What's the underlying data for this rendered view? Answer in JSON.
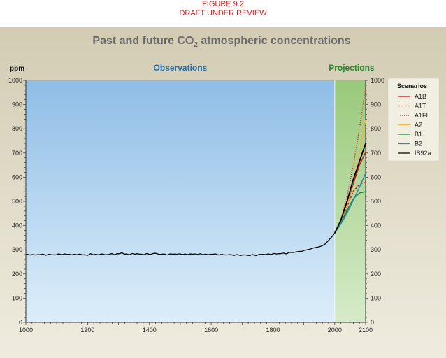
{
  "header": {
    "figure": "FIGURE 9.2",
    "status": "DRAFT UNDER REVIEW"
  },
  "chart_data": {
    "type": "line",
    "title_main": "Past and future CO",
    "title_sub": "2",
    "title_rest": " atmospheric concentrations",
    "ylabel": "ppm",
    "xlim": [
      1000,
      2100
    ],
    "ylim": [
      0,
      1000
    ],
    "x_ticks": [
      1000,
      1200,
      1400,
      1600,
      1800,
      2000,
      2100
    ],
    "y_ticks": [
      0,
      100,
      200,
      300,
      400,
      500,
      600,
      700,
      800,
      900,
      1000
    ],
    "regions": [
      {
        "label": "Observations",
        "x_range": [
          1000,
          2000
        ],
        "color": "#1a6fb5"
      },
      {
        "label": "Projections",
        "x_range": [
          2000,
          2100
        ],
        "color": "#1f8c2a"
      }
    ],
    "observations": {
      "x": [
        1000,
        1010,
        1020,
        1030,
        1040,
        1050,
        1060,
        1070,
        1080,
        1090,
        1100,
        1110,
        1120,
        1130,
        1140,
        1150,
        1160,
        1170,
        1180,
        1190,
        1200,
        1210,
        1220,
        1230,
        1240,
        1250,
        1260,
        1270,
        1280,
        1290,
        1300,
        1310,
        1320,
        1330,
        1340,
        1350,
        1360,
        1370,
        1380,
        1390,
        1400,
        1410,
        1420,
        1430,
        1440,
        1450,
        1460,
        1470,
        1480,
        1490,
        1500,
        1510,
        1520,
        1530,
        1540,
        1550,
        1560,
        1570,
        1580,
        1590,
        1600,
        1610,
        1620,
        1630,
        1640,
        1650,
        1660,
        1670,
        1680,
        1690,
        1700,
        1710,
        1720,
        1730,
        1740,
        1750,
        1760,
        1770,
        1780,
        1790,
        1800,
        1810,
        1820,
        1830,
        1840,
        1850,
        1860,
        1870,
        1880,
        1890,
        1900,
        1910,
        1920,
        1930,
        1940,
        1950,
        1960,
        1970,
        1980,
        1990,
        2000
      ],
      "y": [
        280,
        279,
        281,
        278,
        280,
        282,
        279,
        280,
        281,
        278,
        281,
        282,
        280,
        283,
        281,
        279,
        282,
        280,
        281,
        280,
        276,
        285,
        279,
        280,
        282,
        281,
        280,
        282,
        283,
        281,
        284,
        287,
        283,
        281,
        282,
        284,
        283,
        282,
        281,
        283,
        282,
        284,
        285,
        283,
        281,
        282,
        280,
        282,
        283,
        282,
        282,
        282,
        281,
        282,
        283,
        282,
        282,
        282,
        281,
        280,
        282,
        282,
        281,
        280,
        279,
        280,
        279,
        278,
        280,
        277,
        279,
        279,
        276,
        280,
        277,
        278,
        282,
        280,
        282,
        282,
        283,
        284,
        284,
        285,
        285,
        287,
        289,
        291,
        291,
        294,
        297,
        300,
        303,
        307,
        310,
        312,
        317,
        325,
        339,
        353,
        369
      ]
    },
    "series": [
      {
        "name": "A1B",
        "color": "#c41a1a",
        "dash": "solid",
        "x": [
          2000,
          2020,
          2040,
          2060,
          2080,
          2100
        ],
        "y": [
          369,
          419,
          490,
          573,
          650,
          703
        ]
      },
      {
        "name": "A1T",
        "color": "#d6201e",
        "dash": "dashed",
        "x": [
          2000,
          2020,
          2040,
          2060,
          2080,
          2100
        ],
        "y": [
          369,
          416,
          478,
          542,
          570,
          580
        ]
      },
      {
        "name": "A1FI",
        "color": "#d62020",
        "dash": "dotted",
        "x": [
          2000,
          2020,
          2040,
          2060,
          2080,
          2100
        ],
        "y": [
          369,
          424,
          521,
          650,
          800,
          970
        ]
      },
      {
        "name": "A2",
        "color": "#f2b93a",
        "dash": "solid",
        "x": [
          2000,
          2020,
          2040,
          2060,
          2080,
          2100
        ],
        "y": [
          369,
          417,
          489,
          585,
          700,
          836
        ]
      },
      {
        "name": "B1",
        "color": "#1a8a2a",
        "dash": "solid",
        "x": [
          2000,
          2020,
          2040,
          2060,
          2080,
          2100
        ],
        "y": [
          369,
          411,
          464,
          510,
          535,
          540
        ]
      },
      {
        "name": "B2",
        "color": "#2e88b8",
        "dash": "solid",
        "x": [
          2000,
          2020,
          2040,
          2060,
          2080,
          2100
        ],
        "y": [
          369,
          407,
          452,
          504,
          559,
          616
        ]
      },
      {
        "name": "IS92a",
        "color": "#000000",
        "dash": "solid",
        "x": [
          2000,
          2020,
          2040,
          2060,
          2080,
          2100
        ],
        "y": [
          369,
          423,
          501,
          590,
          665,
          740
        ]
      }
    ],
    "legend_title": "Scenarios",
    "legend_position": "top-right",
    "grid": false
  }
}
